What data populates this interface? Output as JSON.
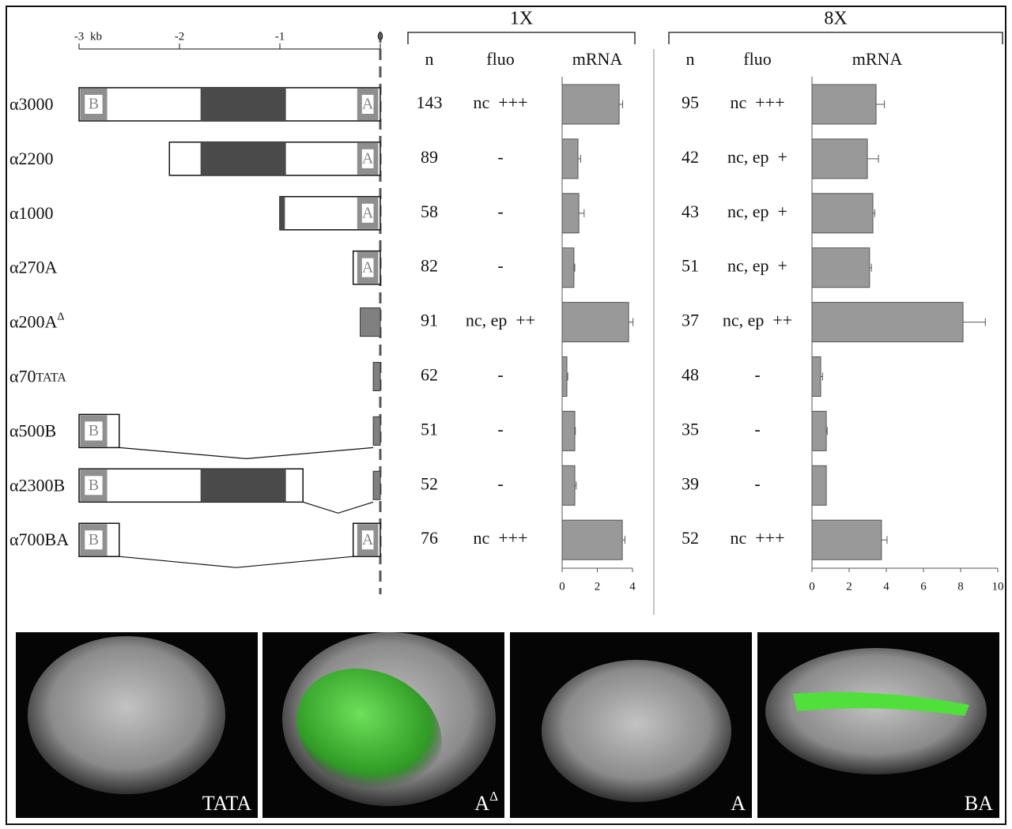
{
  "scale": {
    "lim": [
      -3,
      0
    ],
    "ticks": [
      -3,
      -2,
      -1,
      0
    ],
    "unit": "kb"
  },
  "constructs": [
    {
      "name": "α3000",
      "segments": [
        [
          -3,
          0
        ]
      ],
      "dark": [
        [
          -1.79,
          -0.94
        ]
      ],
      "filled": [],
      "sites": [
        {
          "label": "B",
          "start": -2.99,
          "end": -2.72
        },
        {
          "label": "A",
          "start": -0.23,
          "end": -0.02
        }
      ],
      "joins": []
    },
    {
      "name": "α2200",
      "segments": [
        [
          -2.1,
          0
        ]
      ],
      "dark": [
        [
          -1.79,
          -0.94
        ]
      ],
      "filled": [],
      "sites": [
        {
          "label": "A",
          "start": -0.23,
          "end": -0.02
        }
      ],
      "joins": []
    },
    {
      "name": "α1000",
      "segments": [
        [
          -1.0,
          0
        ]
      ],
      "dark": [
        [
          -1.0,
          -0.95
        ]
      ],
      "filled": [],
      "sites": [
        {
          "label": "A",
          "start": -0.23,
          "end": -0.02
        }
      ],
      "joins": []
    },
    {
      "name": "α270A",
      "segments": [
        [
          -0.27,
          0
        ]
      ],
      "dark": [],
      "filled": [],
      "sites": [
        {
          "label": "A",
          "start": -0.23,
          "end": -0.02
        }
      ],
      "joins": []
    },
    {
      "name": "α200A",
      "sup": "Δ",
      "segments": [],
      "dark": [],
      "filled": [
        [
          -0.2,
          0
        ]
      ],
      "sites": [],
      "joins": []
    },
    {
      "name": "α70",
      "sub": "TATA",
      "segments": [],
      "dark": [],
      "filled": [
        [
          -0.07,
          0
        ]
      ],
      "sites": [],
      "joins": []
    },
    {
      "name": "α500B",
      "segments": [
        [
          -3,
          -2.6
        ]
      ],
      "dark": [],
      "filled": [
        [
          -0.07,
          0
        ]
      ],
      "sites": [
        {
          "label": "B",
          "start": -2.99,
          "end": -2.72
        }
      ],
      "joins": [
        [
          -2.6,
          -0.07
        ]
      ]
    },
    {
      "name": "α2300B",
      "segments": [
        [
          -3,
          -0.77
        ]
      ],
      "dark": [
        [
          -1.79,
          -0.94
        ]
      ],
      "filled": [
        [
          -0.07,
          0
        ]
      ],
      "sites": [
        {
          "label": "B",
          "start": -2.99,
          "end": -2.72
        }
      ],
      "joins": [
        [
          -0.77,
          -0.07
        ]
      ]
    },
    {
      "name": "α700BA",
      "segments": [
        [
          -3,
          -2.6
        ],
        [
          -0.27,
          0
        ]
      ],
      "dark": [],
      "filled": [],
      "sites": [
        {
          "label": "B",
          "start": -2.99,
          "end": -2.72
        },
        {
          "label": "A",
          "start": -0.23,
          "end": -0.02
        }
      ],
      "joins": [
        [
          -2.6,
          -0.27
        ]
      ]
    }
  ],
  "chart_data": [
    {
      "type": "hbar",
      "title": "1X",
      "headers": [
        "n",
        "fluo",
        "mRNA"
      ],
      "color": "#999999",
      "n": [
        143,
        89,
        58,
        82,
        91,
        62,
        51,
        52,
        76
      ],
      "fluo": [
        "nc  +++",
        "-",
        "-",
        "-",
        "nc, ep  ++",
        "-",
        "-",
        "-",
        "nc  +++"
      ],
      "values": [
        3.24,
        0.9,
        0.95,
        0.67,
        3.78,
        0.27,
        0.72,
        0.72,
        3.42
      ],
      "errors": [
        0.2,
        0.15,
        0.3,
        0.05,
        0.25,
        0.05,
        0.03,
        0.08,
        0.15
      ],
      "xlim": [
        0,
        4
      ],
      "xticks": [
        0,
        2,
        4
      ]
    },
    {
      "type": "hbar",
      "title": "8X",
      "headers": [
        "n",
        "fluo",
        "mRNA"
      ],
      "color": "#999999",
      "n": [
        95,
        42,
        43,
        51,
        37,
        48,
        35,
        39,
        52
      ],
      "fluo": [
        "nc  +++",
        "nc, ep  +",
        "nc, ep  +",
        "nc, ep  +",
        "nc, ep  ++",
        "-",
        "-",
        "-",
        "nc  +++"
      ],
      "values": [
        3.45,
        2.98,
        3.28,
        3.1,
        8.13,
        0.47,
        0.77,
        0.77,
        3.74
      ],
      "errors": [
        0.45,
        0.6,
        0.1,
        0.1,
        1.2,
        0.1,
        0.05,
        null,
        0.3
      ],
      "xlim": [
        0,
        10
      ],
      "xticks": [
        0,
        2,
        4,
        6,
        8,
        10
      ]
    }
  ],
  "panels": [
    {
      "label": "TATA"
    },
    {
      "label": "A",
      "sup": "Δ"
    },
    {
      "label": "A"
    },
    {
      "label": "BA"
    }
  ]
}
